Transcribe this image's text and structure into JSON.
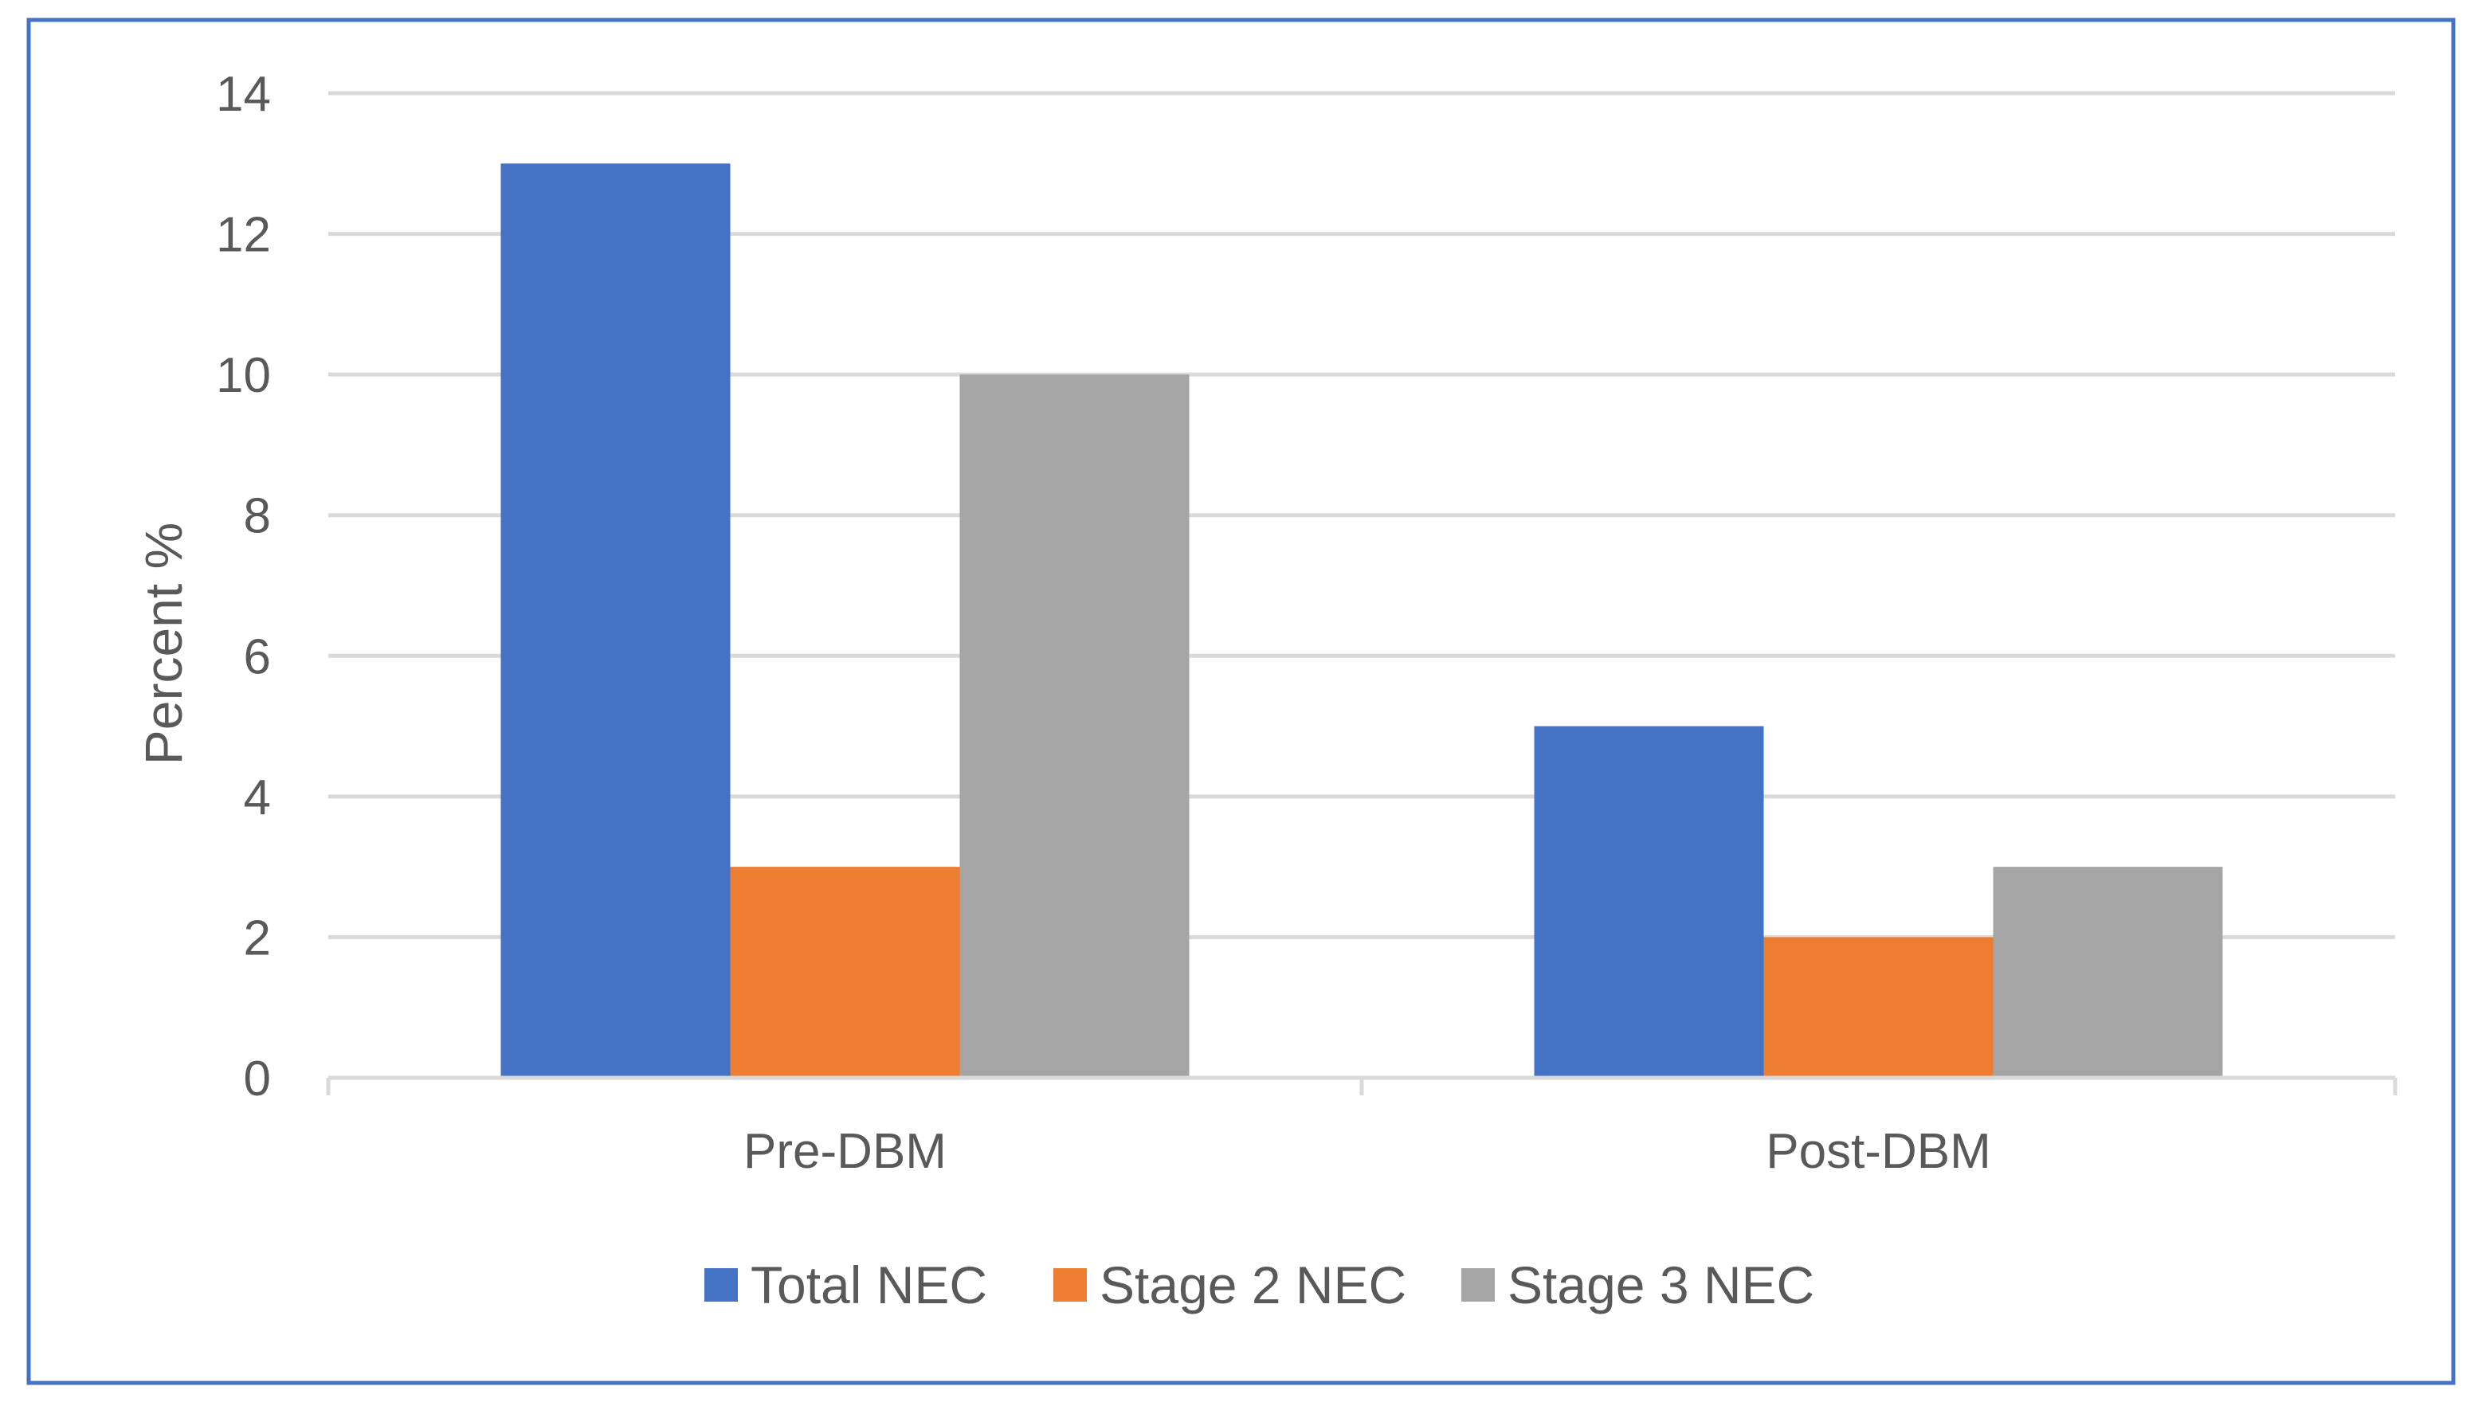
{
  "chart_data": {
    "type": "bar",
    "title": "",
    "xlabel": "",
    "ylabel": "Percent %",
    "ylim": [
      0,
      14
    ],
    "yticks": [
      "0",
      "2",
      "4",
      "6",
      "8",
      "10",
      "12",
      "14"
    ],
    "categories": [
      "Pre-DBM",
      "Post-DBM"
    ],
    "series": [
      {
        "name": "Total NEC",
        "values": [
          13,
          5
        ],
        "color": "#4472C4"
      },
      {
        "name": "Stage 2 NEC",
        "values": [
          3,
          2
        ],
        "color": "#ED7D31"
      },
      {
        "name": "Stage 3 NEC",
        "values": [
          10,
          3
        ],
        "color": "#A5A5A5"
      }
    ],
    "grid": true,
    "legend_position": "bottom",
    "border_color": "#4472C4"
  }
}
